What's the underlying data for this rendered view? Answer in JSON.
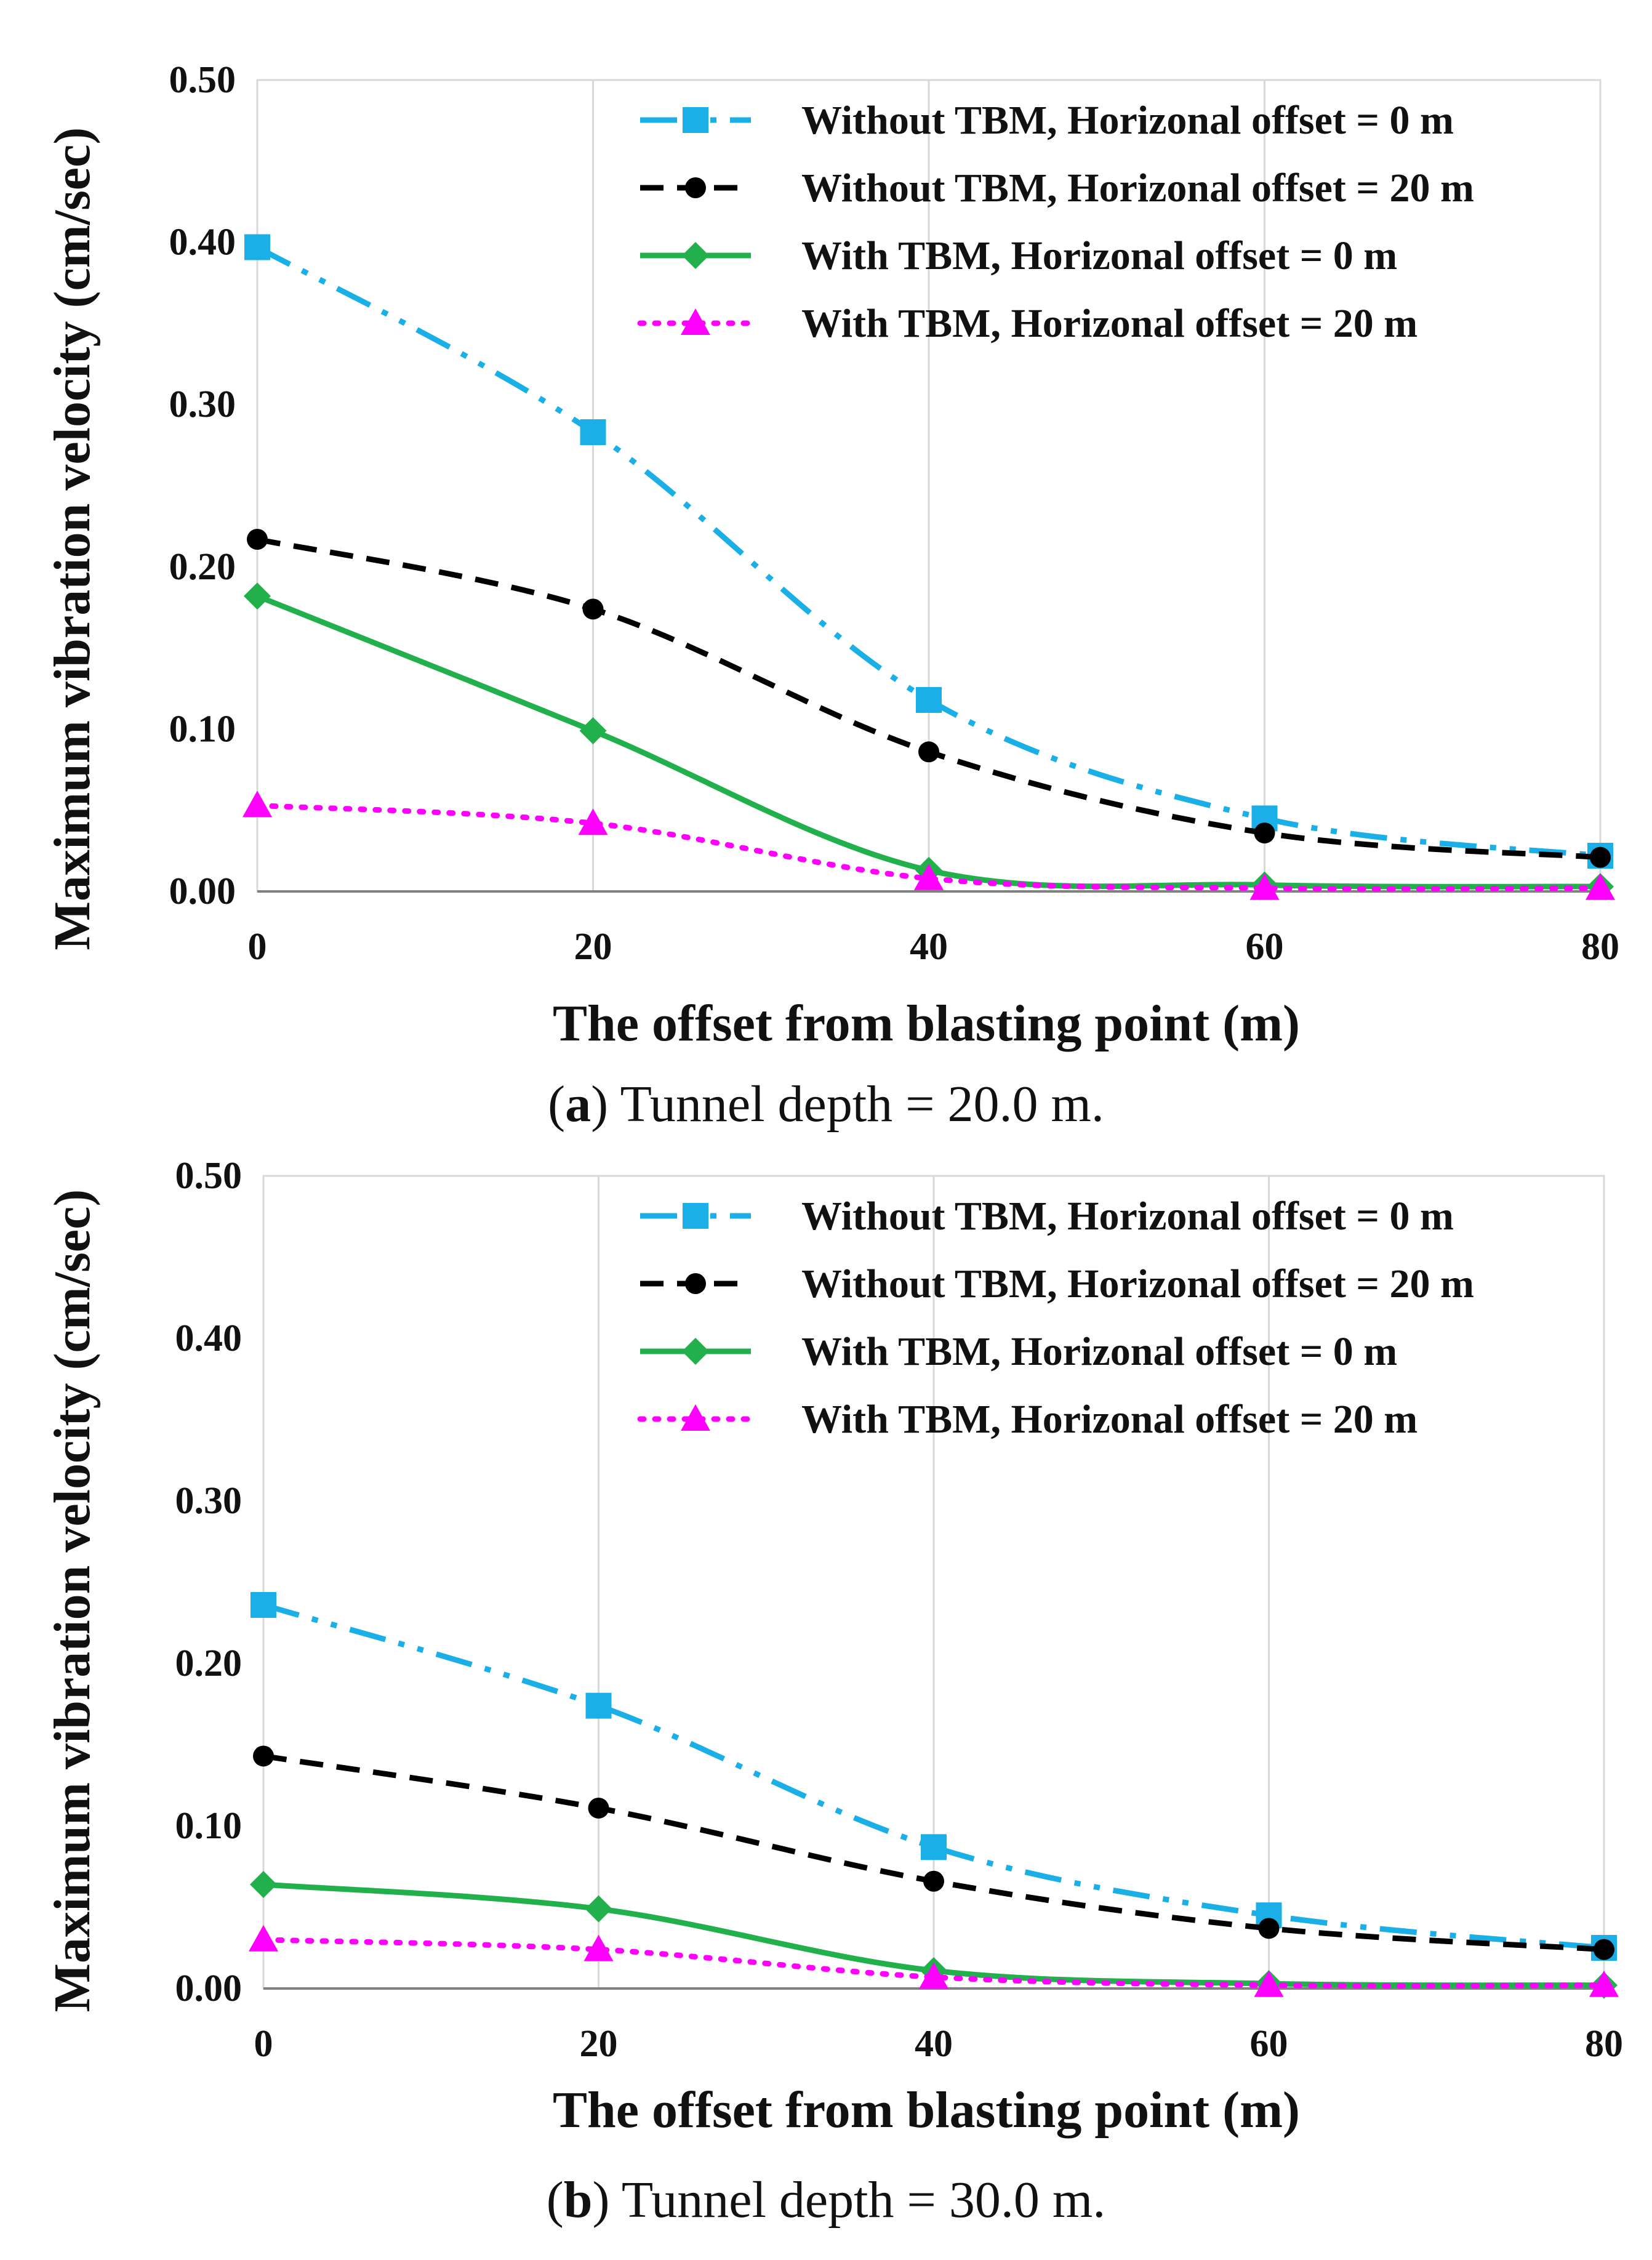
{
  "colors": {
    "series_1": "#1AAFE6",
    "series_2": "#000000",
    "series_3": "#21B04C",
    "series_4": "#FF00FF",
    "grid": "#D9D9D9",
    "axis": "#808080"
  },
  "chart_data": [
    {
      "type": "line",
      "caption_letter": "a",
      "caption_text": ") Tunnel depth = 20.0 m.",
      "xlabel": "The offset from blasting point (m)",
      "ylabel": "Maximum vibration velocity (cm/sec)",
      "x": [
        0,
        20,
        40,
        60,
        80
      ],
      "xticks": [
        "0",
        "20",
        "40",
        "60",
        "80"
      ],
      "yticks": [
        "0.00",
        "0.10",
        "0.20",
        "0.30",
        "0.40",
        "0.50"
      ],
      "xlim": [
        0,
        80
      ],
      "ylim": [
        0,
        0.5
      ],
      "grid": "vertical",
      "legend_position": "top-right",
      "series": [
        {
          "name": "Without TBM, Horizonal offset = 0 m",
          "style": "dashdotdot",
          "marker": "square",
          "values": [
            0.397,
            0.283,
            0.118,
            0.045,
            0.022
          ]
        },
        {
          "name": "Without TBM, Horizonal offset = 20 m",
          "style": "dash",
          "marker": "circle",
          "values": [
            0.217,
            0.174,
            0.086,
            0.036,
            0.021
          ]
        },
        {
          "name": "With TBM, Horizonal offset = 0 m",
          "style": "solid",
          "marker": "diamond",
          "values": [
            0.182,
            0.099,
            0.013,
            0.004,
            0.003
          ]
        },
        {
          "name": "With TBM, Horizonal offset = 20 m",
          "style": "dot",
          "marker": "triangle",
          "values": [
            0.053,
            0.042,
            0.008,
            0.002,
            0.002
          ]
        }
      ]
    },
    {
      "type": "line",
      "caption_letter": "b",
      "caption_text": ") Tunnel depth = 30.0 m.",
      "xlabel": "The offset from blasting point (m)",
      "ylabel": "Maximum vibration velocity (cm/sec)",
      "x": [
        0,
        20,
        40,
        60,
        80
      ],
      "xticks": [
        "0",
        "20",
        "40",
        "60",
        "80"
      ],
      "yticks": [
        "0.00",
        "0.10",
        "0.20",
        "0.30",
        "0.40",
        "0.50"
      ],
      "xlim": [
        0,
        80
      ],
      "ylim": [
        0,
        0.5
      ],
      "grid": "vertical",
      "legend_position": "top-right",
      "series": [
        {
          "name": "Without TBM, Horizonal offset = 0 m",
          "style": "dashdotdot",
          "marker": "square",
          "values": [
            0.236,
            0.174,
            0.087,
            0.045,
            0.025
          ]
        },
        {
          "name": "Without TBM, Horizonal offset = 20 m",
          "style": "dash",
          "marker": "circle",
          "values": [
            0.143,
            0.111,
            0.066,
            0.037,
            0.024
          ]
        },
        {
          "name": "With TBM, Horizonal offset = 0 m",
          "style": "solid",
          "marker": "diamond",
          "values": [
            0.064,
            0.049,
            0.011,
            0.003,
            0.002
          ]
        },
        {
          "name": "With TBM, Horizonal offset = 20 m",
          "style": "dot",
          "marker": "triangle",
          "values": [
            0.03,
            0.024,
            0.007,
            0.002,
            0.002
          ]
        }
      ]
    }
  ]
}
